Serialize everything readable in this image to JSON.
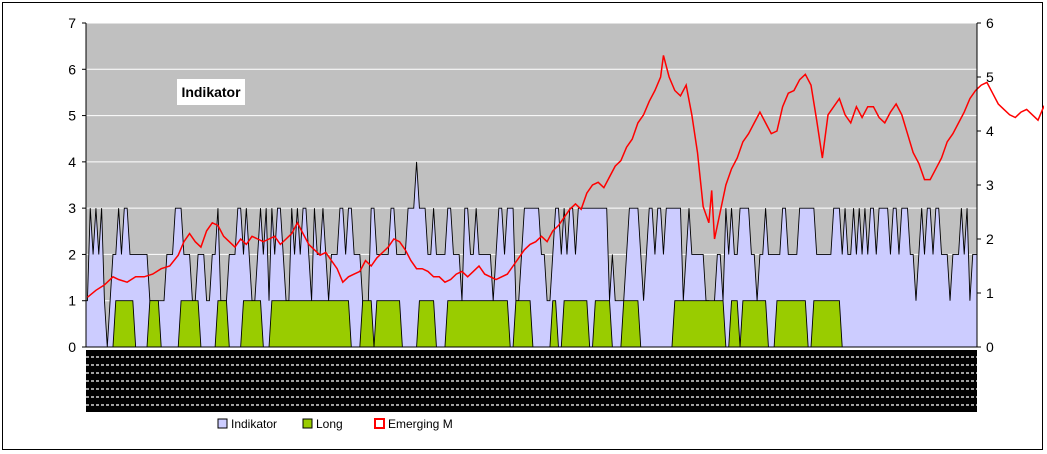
{
  "chart_data": {
    "type": "area",
    "title": "Indikator",
    "colors": {
      "plot_bg": "#c0c0c0",
      "indikator_fill": "#ccccff",
      "long_fill": "#99cc00",
      "emerging_line": "#ff0000",
      "grid": "#ffffff"
    },
    "y_left": {
      "min": 0,
      "max": 7,
      "ticks": [
        "0",
        "1",
        "2",
        "3",
        "4",
        "5",
        "6",
        "7"
      ]
    },
    "y_right": {
      "min": 0,
      "max": 6,
      "ticks": [
        "0",
        "1",
        "2",
        "3",
        "4",
        "5",
        "6"
      ]
    },
    "grid": true,
    "legend_position": "bottom",
    "legend": [
      {
        "label": "Indikator",
        "color": "#ccccff"
      },
      {
        "label": "Long",
        "color": "#99cc00"
      },
      {
        "label": "Emerging M",
        "color": "#ff0000"
      }
    ],
    "series": [
      {
        "name": "Indikator",
        "axis": "left",
        "values": [
          1,
          3,
          2,
          3,
          2,
          3,
          1,
          0,
          1,
          2,
          2,
          3,
          2,
          3,
          3,
          2,
          2,
          2,
          2,
          2,
          2,
          2,
          1,
          1,
          1,
          1,
          1,
          1,
          2,
          2,
          2,
          3,
          3,
          3,
          2,
          2,
          2,
          1,
          1,
          2,
          2,
          2,
          1,
          1,
          2,
          2,
          3,
          1,
          1,
          1,
          2,
          2,
          2,
          3,
          3,
          2,
          3,
          2,
          1,
          1,
          2,
          3,
          2,
          3,
          1,
          3,
          2,
          3,
          3,
          2,
          1,
          1,
          3,
          2,
          3,
          2,
          3,
          3,
          2,
          1,
          3,
          2,
          2,
          3,
          2,
          1,
          2,
          2,
          2,
          3,
          3,
          2,
          3,
          3,
          2,
          2,
          2,
          1,
          0,
          1,
          3,
          3,
          2,
          2,
          2,
          2,
          2,
          3,
          3,
          2,
          2,
          2,
          2,
          3,
          3,
          3,
          4,
          3,
          3,
          3,
          2,
          2,
          3,
          2,
          2,
          2,
          2,
          3,
          3,
          2,
          2,
          2,
          1,
          3,
          3,
          2,
          2,
          3,
          2,
          2,
          2,
          2,
          2,
          1,
          2,
          3,
          3,
          2,
          3,
          3,
          3,
          1,
          1,
          2,
          3,
          3,
          3,
          3,
          3,
          3,
          2,
          2,
          1,
          1,
          2,
          3,
          3,
          2,
          3,
          2,
          3,
          3,
          2,
          3,
          3,
          3,
          3,
          3,
          3,
          3,
          3,
          3,
          3,
          3,
          1,
          2,
          1,
          1,
          1,
          1,
          2,
          3,
          3,
          3,
          3,
          2,
          1,
          2,
          3,
          3,
          2,
          3,
          3,
          2,
          3,
          3,
          3,
          3,
          3,
          3,
          1,
          2,
          3,
          2,
          2,
          2,
          2,
          2,
          1,
          1,
          0,
          1,
          2,
          2,
          1,
          3,
          2,
          3,
          2,
          2,
          3,
          3,
          3,
          3,
          2,
          2,
          1,
          2,
          2,
          3,
          2,
          2,
          2,
          2,
          2,
          3,
          3,
          2,
          2,
          2,
          2,
          3,
          3,
          3,
          3,
          3,
          3,
          2,
          2,
          2,
          2,
          2,
          2,
          3,
          3,
          3,
          2,
          3,
          2,
          2,
          3,
          2,
          3,
          2,
          3,
          2,
          3,
          3,
          2,
          3,
          3,
          3,
          3,
          2,
          3,
          3,
          2,
          3,
          3,
          3,
          2,
          2,
          1,
          2,
          3,
          2,
          3,
          3,
          2,
          3,
          3,
          2,
          2,
          2,
          1,
          2,
          2,
          2,
          3,
          2,
          3,
          1,
          2,
          2
        ]
      },
      {
        "name": "Long",
        "axis": "left",
        "values": [
          0,
          0,
          0,
          0,
          0,
          0,
          0,
          0,
          0,
          0,
          1,
          1,
          1,
          1,
          1,
          1,
          1,
          0,
          0,
          0,
          0,
          0,
          1,
          1,
          1,
          1,
          0,
          0,
          0,
          0,
          0,
          0,
          0,
          1,
          1,
          1,
          1,
          1,
          1,
          1,
          0,
          0,
          0,
          0,
          0,
          0,
          1,
          1,
          1,
          1,
          0,
          0,
          0,
          0,
          0,
          1,
          1,
          1,
          1,
          1,
          1,
          1,
          0,
          0,
          0,
          1,
          1,
          1,
          1,
          1,
          1,
          1,
          1,
          1,
          1,
          1,
          1,
          1,
          1,
          1,
          1,
          1,
          1,
          1,
          1,
          1,
          1,
          1,
          1,
          1,
          1,
          1,
          1,
          0,
          0,
          0,
          0,
          1,
          1,
          1,
          1,
          0,
          1,
          1,
          1,
          1,
          1,
          1,
          1,
          1,
          1,
          0,
          0,
          0,
          0,
          0,
          0,
          1,
          1,
          1,
          1,
          1,
          1,
          0,
          0,
          0,
          0,
          1,
          1,
          1,
          1,
          1,
          1,
          1,
          1,
          1,
          1,
          1,
          1,
          1,
          1,
          1,
          1,
          1,
          1,
          1,
          1,
          1,
          1,
          0,
          0,
          1,
          1,
          1,
          1,
          1,
          1,
          0,
          0,
          0,
          0,
          0,
          0,
          0,
          1,
          1,
          0,
          0,
          1,
          1,
          1,
          1,
          1,
          1,
          1,
          1,
          1,
          0,
          0,
          1,
          1,
          1,
          1,
          1,
          1,
          0,
          0,
          0,
          0,
          1,
          1,
          1,
          1,
          1,
          1,
          0,
          0,
          0,
          0,
          0,
          0,
          0,
          0,
          0,
          0,
          0,
          0,
          1,
          1,
          1,
          1,
          1,
          1,
          1,
          1,
          1,
          1,
          1,
          1,
          1,
          1,
          1,
          1,
          1,
          1,
          0,
          0,
          1,
          1,
          1,
          0,
          1,
          1,
          1,
          1,
          1,
          1,
          1,
          1,
          1,
          0,
          0,
          0,
          1,
          1,
          1,
          1,
          1,
          1,
          1,
          1,
          1,
          1,
          1,
          0,
          0,
          1,
          1,
          1,
          1,
          1,
          1,
          1,
          1,
          1,
          1,
          0,
          0,
          0,
          0,
          0,
          0,
          0
        ]
      },
      {
        "name": "Emerging M",
        "axis": "right",
        "points": [
          [
            0,
            0.92
          ],
          [
            3,
            1.05
          ],
          [
            6,
            1.15
          ],
          [
            9,
            1.3
          ],
          [
            11,
            1.25
          ],
          [
            14,
            1.2
          ],
          [
            17,
            1.3
          ],
          [
            20,
            1.3
          ],
          [
            23,
            1.35
          ],
          [
            26,
            1.45
          ],
          [
            29,
            1.5
          ],
          [
            32,
            1.7
          ],
          [
            34,
            1.95
          ],
          [
            36,
            2.1
          ],
          [
            38,
            1.95
          ],
          [
            40,
            1.85
          ],
          [
            42,
            2.15
          ],
          [
            44,
            2.3
          ],
          [
            46,
            2.25
          ],
          [
            48,
            2.05
          ],
          [
            50,
            1.95
          ],
          [
            52,
            1.85
          ],
          [
            54,
            2.0
          ],
          [
            56,
            1.9
          ],
          [
            58,
            2.05
          ],
          [
            60,
            2.0
          ],
          [
            62,
            1.95
          ],
          [
            64,
            2.0
          ],
          [
            66,
            2.05
          ],
          [
            68,
            1.9
          ],
          [
            70,
            2.0
          ],
          [
            72,
            2.1
          ],
          [
            74,
            2.3
          ],
          [
            76,
            2.1
          ],
          [
            78,
            1.9
          ],
          [
            80,
            1.8
          ],
          [
            82,
            1.7
          ],
          [
            84,
            1.75
          ],
          [
            86,
            1.6
          ],
          [
            88,
            1.45
          ],
          [
            90,
            1.2
          ],
          [
            92,
            1.3
          ],
          [
            94,
            1.35
          ],
          [
            96,
            1.4
          ],
          [
            98,
            1.6
          ],
          [
            100,
            1.5
          ],
          [
            102,
            1.65
          ],
          [
            104,
            1.75
          ],
          [
            106,
            1.85
          ],
          [
            108,
            2.0
          ],
          [
            110,
            1.95
          ],
          [
            112,
            1.8
          ],
          [
            114,
            1.6
          ],
          [
            116,
            1.45
          ],
          [
            118,
            1.45
          ],
          [
            120,
            1.4
          ],
          [
            122,
            1.3
          ],
          [
            124,
            1.3
          ],
          [
            126,
            1.2
          ],
          [
            128,
            1.25
          ],
          [
            130,
            1.35
          ],
          [
            132,
            1.4
          ],
          [
            134,
            1.3
          ],
          [
            136,
            1.4
          ],
          [
            138,
            1.5
          ],
          [
            140,
            1.35
          ],
          [
            142,
            1.3
          ],
          [
            144,
            1.25
          ],
          [
            146,
            1.3
          ],
          [
            148,
            1.35
          ],
          [
            150,
            1.5
          ],
          [
            152,
            1.65
          ],
          [
            154,
            1.8
          ],
          [
            156,
            1.9
          ],
          [
            158,
            1.95
          ],
          [
            160,
            2.05
          ],
          [
            162,
            1.95
          ],
          [
            164,
            2.15
          ],
          [
            166,
            2.25
          ],
          [
            168,
            2.4
          ],
          [
            170,
            2.55
          ],
          [
            172,
            2.65
          ],
          [
            174,
            2.55
          ],
          [
            176,
            2.85
          ],
          [
            178,
            3.0
          ],
          [
            180,
            3.05
          ],
          [
            182,
            2.95
          ],
          [
            184,
            3.15
          ],
          [
            186,
            3.35
          ],
          [
            188,
            3.45
          ],
          [
            190,
            3.7
          ],
          [
            192,
            3.85
          ],
          [
            194,
            4.15
          ],
          [
            196,
            4.3
          ],
          [
            198,
            4.55
          ],
          [
            200,
            4.75
          ],
          [
            202,
            5.0
          ],
          [
            203,
            5.4
          ],
          [
            205,
            5.0
          ],
          [
            207,
            4.75
          ],
          [
            209,
            4.65
          ],
          [
            211,
            4.85
          ],
          [
            213,
            4.3
          ],
          [
            215,
            3.6
          ],
          [
            217,
            2.6
          ],
          [
            219,
            2.3
          ],
          [
            220,
            2.9
          ],
          [
            221,
            2.0
          ],
          [
            223,
            2.5
          ],
          [
            225,
            3.0
          ],
          [
            227,
            3.3
          ],
          [
            229,
            3.5
          ],
          [
            231,
            3.8
          ],
          [
            233,
            3.95
          ],
          [
            235,
            4.15
          ],
          [
            237,
            4.35
          ],
          [
            239,
            4.15
          ],
          [
            241,
            3.95
          ],
          [
            243,
            4.0
          ],
          [
            245,
            4.45
          ],
          [
            247,
            4.7
          ],
          [
            249,
            4.75
          ],
          [
            251,
            4.95
          ],
          [
            253,
            5.05
          ],
          [
            255,
            4.85
          ],
          [
            257,
            4.2
          ],
          [
            259,
            3.5
          ],
          [
            261,
            4.3
          ],
          [
            263,
            4.45
          ],
          [
            265,
            4.6
          ],
          [
            267,
            4.3
          ],
          [
            269,
            4.15
          ],
          [
            271,
            4.45
          ],
          [
            273,
            4.25
          ],
          [
            275,
            4.45
          ],
          [
            277,
            4.45
          ],
          [
            279,
            4.25
          ],
          [
            281,
            4.15
          ],
          [
            283,
            4.35
          ],
          [
            285,
            4.5
          ],
          [
            287,
            4.3
          ],
          [
            289,
            3.95
          ],
          [
            291,
            3.6
          ],
          [
            293,
            3.4
          ],
          [
            295,
            3.1
          ],
          [
            297,
            3.1
          ],
          [
            299,
            3.3
          ],
          [
            301,
            3.5
          ],
          [
            303,
            3.8
          ],
          [
            305,
            3.95
          ],
          [
            307,
            4.15
          ],
          [
            309,
            4.35
          ],
          [
            311,
            4.6
          ],
          [
            313,
            4.75
          ],
          [
            315,
            4.85
          ],
          [
            317,
            4.9
          ],
          [
            319,
            4.7
          ],
          [
            321,
            4.5
          ],
          [
            323,
            4.4
          ],
          [
            325,
            4.3
          ],
          [
            327,
            4.25
          ],
          [
            329,
            4.35
          ],
          [
            331,
            4.4
          ],
          [
            333,
            4.3
          ],
          [
            335,
            4.2
          ],
          [
            337,
            4.45
          ],
          [
            339,
            4.3
          ],
          [
            341,
            3.8
          ],
          [
            343,
            3.5
          ],
          [
            345,
            3.85
          ],
          [
            347,
            4.2
          ],
          [
            348,
            4.55
          ]
        ]
      }
    ]
  }
}
